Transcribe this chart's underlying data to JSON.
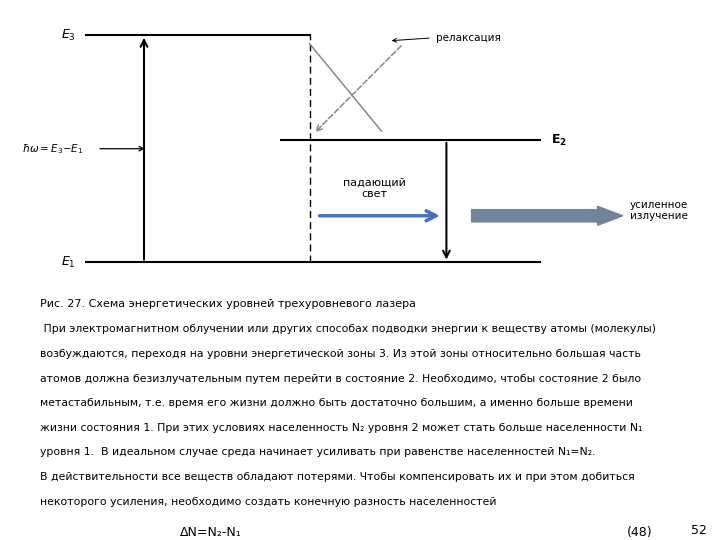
{
  "bg_color": "#ffffff",
  "caption": "Рис. 27. Схема энергетических уровней трехуровневого лазера",
  "body_text": [
    " При электромагнитном облучении или других способах подводки энергии к веществу атомы (молекулы)",
    "возбуждаются, переходя на уровни энергетической зоны 3. Из этой зоны относительно большая часть",
    "атомов должна безизлучательным путем перейти в состояние 2. Необходимо, чтобы состояние 2 было",
    "метастабильным, т.е. время его жизни должно быть достаточно большим, а именно больше времени",
    "жизни состояния 1. При этих условиях населенность N₂ уровня 2 может стать больше населенности N₁",
    "уровня 1.  В идеальном случае среда начинает усиливать при равенстве населенностей N₁=N₂.",
    "В действительности все веществ обладают потерями. Чтобы компенсировать их и при этом добиться",
    "некоторого усиления, необходимо создать конечную разность населенностей"
  ],
  "formula": "ΔN=N₂-N₁",
  "formula_number": "(48)",
  "page_number": "52",
  "incoming_arrow_color": "#4472C4",
  "outgoing_arrow_color": "#70859A"
}
